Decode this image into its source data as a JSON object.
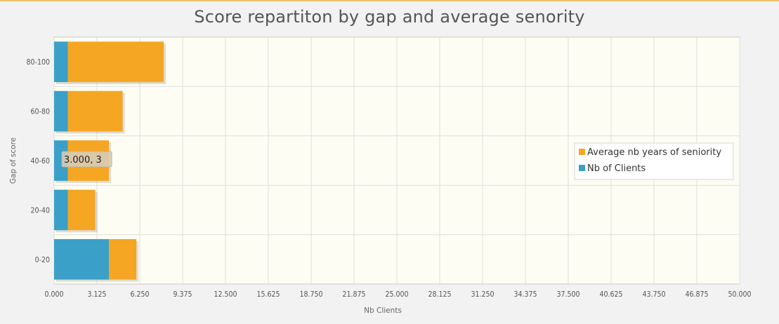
{
  "chart_data": {
    "type": "bar",
    "orientation": "horizontal",
    "stacked": true,
    "title": "Score repartiton by gap and average senority",
    "xlabel": "Nb Clients",
    "ylabel": "Gap of score",
    "xlim": [
      0,
      50
    ],
    "categories": [
      "0-20",
      "20-40",
      "40-60",
      "60-80",
      "80-100"
    ],
    "category_tick_labels": [
      "0-20",
      "20-40",
      "40-60",
      "60-80",
      "80-100"
    ],
    "x_tick_labels": [
      "0.000",
      "3.125",
      "6.250",
      "9.375",
      "12.500",
      "15.625",
      "18.750",
      "21.875",
      "25.000",
      "28.125",
      "31.250",
      "34.375",
      "37.500",
      "40.625",
      "43.750",
      "46.875",
      "50.000"
    ],
    "series": [
      {
        "name": "Nb of Clients",
        "color": "#3aa0c8",
        "values": [
          4,
          1,
          1,
          1,
          1
        ]
      },
      {
        "name": "Average nb years of seniority",
        "color": "#f5a623",
        "values": [
          2,
          2,
          3,
          4,
          7
        ]
      }
    ],
    "legend_order": [
      "Average nb years of seniority",
      "Nb of Clients"
    ],
    "legend_position": "right",
    "grid": true,
    "tooltip": {
      "text": "3.000, 3",
      "category": "40-60"
    }
  }
}
